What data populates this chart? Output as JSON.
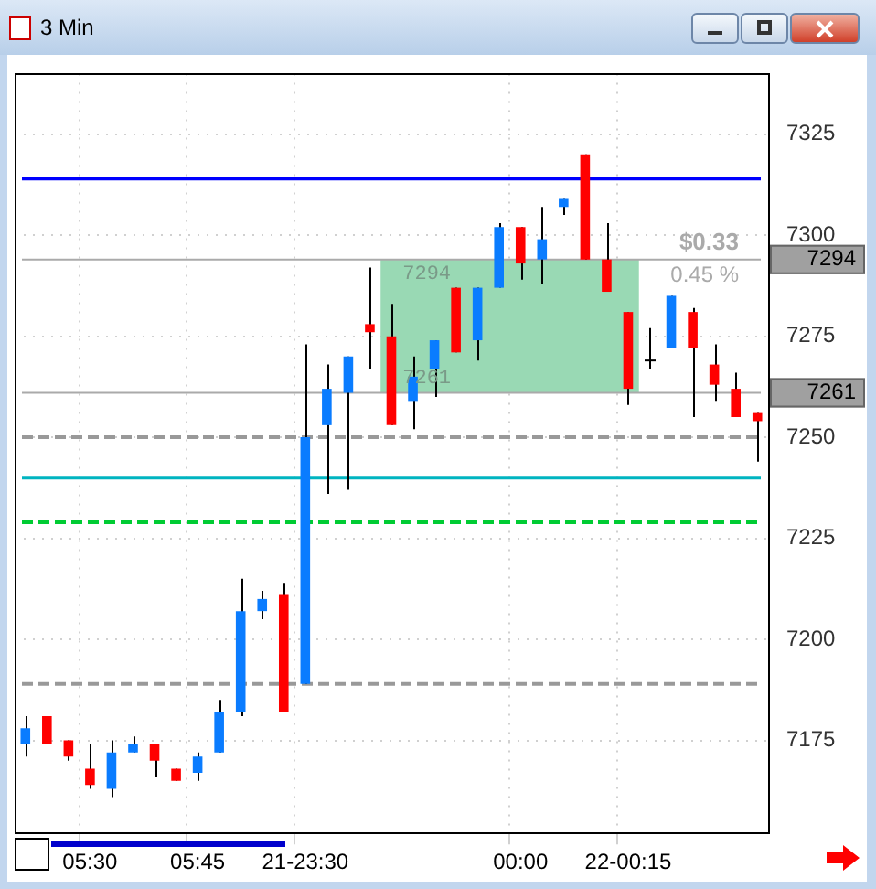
{
  "chart_data": {
    "type": "candlestick",
    "title": "3 Min",
    "categories": [
      null,
      null,
      null,
      "05:30",
      null,
      null,
      null,
      null,
      "05:45",
      null,
      null,
      null,
      null,
      "21-23:30",
      null,
      null,
      null,
      null,
      null,
      null,
      null,
      null,
      null,
      "00:00",
      null,
      null,
      null,
      null,
      "22-00:15",
      null,
      null,
      null,
      null,
      null,
      null
    ],
    "ohlc": [
      [
        7174,
        7181,
        7171,
        7178
      ],
      [
        7181,
        7181,
        7174,
        7174
      ],
      [
        7175,
        7175,
        7170,
        7171
      ],
      [
        7168,
        7174,
        7163,
        7164
      ],
      [
        7163,
        7175,
        7161,
        7172
      ],
      [
        7172,
        7176,
        7172,
        7174
      ],
      [
        7174,
        7174,
        7166,
        7170
      ],
      [
        7168,
        7168,
        7165,
        7165
      ],
      [
        7167,
        7172,
        7165,
        7171
      ],
      [
        7172,
        7185,
        7172,
        7182
      ],
      [
        7182,
        7215,
        7181,
        7207
      ],
      [
        7207,
        7212,
        7205,
        7210
      ],
      [
        7211,
        7214,
        7182,
        7182
      ],
      [
        7189,
        7273,
        7189,
        7250
      ],
      [
        7253,
        7268,
        7236,
        7262
      ],
      [
        7261,
        7270,
        7237,
        7270
      ],
      [
        7278,
        7292,
        7267,
        7276
      ],
      [
        7275,
        7283,
        7253,
        7253
      ],
      [
        7259,
        7270,
        7252,
        7265
      ],
      [
        7267,
        7274,
        7260,
        7274
      ],
      [
        7287,
        7287,
        7271,
        7271
      ],
      [
        7274,
        7287,
        7269,
        7287
      ],
      [
        7287,
        7303,
        7287,
        7302
      ],
      [
        7302,
        7302,
        7289,
        7293
      ],
      [
        7294,
        7307,
        7288,
        7299
      ],
      [
        7307,
        7309,
        7305,
        7309
      ],
      [
        7320,
        7320,
        7294,
        7294
      ],
      [
        7294,
        7303,
        7286,
        7286
      ],
      [
        7281,
        7281,
        7258,
        7262
      ],
      [
        7269,
        7277,
        7267,
        7269
      ],
      [
        7272,
        7285,
        7272,
        7285
      ],
      [
        7281,
        7282,
        7255,
        7272
      ],
      [
        7268,
        7273,
        7259,
        7263
      ],
      [
        7262,
        7266,
        7255,
        7255
      ],
      [
        7256,
        7256,
        7244,
        7254
      ]
    ],
    "colors": [
      "#0a7cff",
      "#ff0000",
      "#ff0000",
      "#ff0000",
      "#0a7cff",
      "#0a7cff",
      "#ff0000",
      "#ff0000",
      "#0a7cff",
      "#0a7cff",
      "#0a7cff",
      "#0a7cff",
      "#ff0000",
      "#0a7cff",
      "#0a7cff",
      "#0a7cff",
      "#ff0000",
      "#ff0000",
      "#0a7cff",
      "#0a7cff",
      "#ff0000",
      "#0a7cff",
      "#0a7cff",
      "#ff0000",
      "#0a7cff",
      "#0a7cff",
      "#ff0000",
      "#ff0000",
      "#ff0000",
      "#000000",
      "#0a7cff",
      "#ff0000",
      "#ff0000",
      "#ff0000",
      "#ff0000"
    ],
    "ylim": [
      7152,
      7340
    ],
    "yticks": [
      7175,
      7200,
      7225,
      7250,
      7275,
      7300,
      7325
    ],
    "grid": true,
    "ref_lines": [
      {
        "axis": "y",
        "value": 7314,
        "color": "#0000ff"
      },
      {
        "axis": "y",
        "value": 7240,
        "color": "#00b4c0"
      },
      {
        "axis": "y",
        "value": 7229,
        "color": "#00cc33",
        "line_style": "dashed"
      },
      {
        "axis": "y",
        "value": 7250,
        "color": "#999999",
        "line_style": "dashed"
      },
      {
        "axis": "y",
        "value": 7189,
        "color": "#999999",
        "line_style": "dashed"
      },
      {
        "axis": "y",
        "value": 7294,
        "color": "#aaaaaa",
        "label": "7294"
      },
      {
        "axis": "y",
        "value": 7261,
        "color": "#aaaaaa",
        "label": "7261"
      }
    ],
    "bands": [
      {
        "axis": "y",
        "from": 7261,
        "to": 7294,
        "color": "#99d9b4"
      }
    ],
    "annotations": [
      "7294",
      "7261",
      "$0.33",
      "0.45 %"
    ]
  }
}
